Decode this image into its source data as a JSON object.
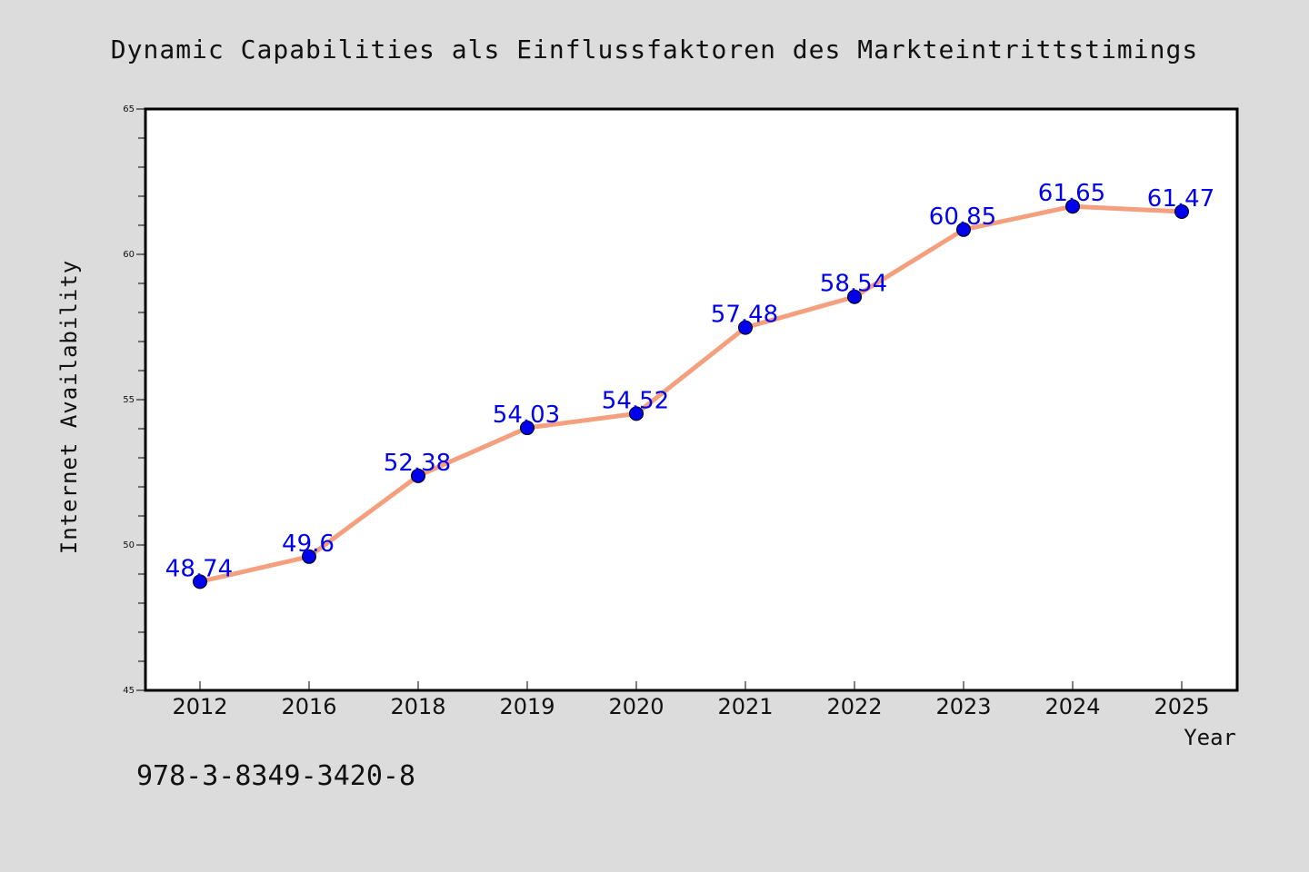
{
  "chart_data": {
    "type": "line",
    "title": "Dynamic Capabilities als Einflussfaktoren des Markteintrittstimings",
    "xlabel": "Year",
    "ylabel": "Internet Availability",
    "categories": [
      "2012",
      "2016",
      "2018",
      "2019",
      "2020",
      "2021",
      "2022",
      "2023",
      "2024",
      "2025"
    ],
    "series": [
      {
        "values": [
          48.74,
          49.6,
          52.38,
          54.03,
          54.52,
          57.48,
          58.54,
          60.85,
          61.65,
          61.47
        ],
        "labels": [
          "48.74",
          "49.6",
          "52.38",
          "54.03",
          "54.52",
          "57.48",
          "58.54",
          "60.85",
          "61.65",
          "61.47"
        ]
      }
    ],
    "ylim": [
      45,
      65
    ],
    "yticks": [
      45,
      50,
      55,
      60,
      65
    ],
    "ytick_labels": [
      "45",
      "50",
      "55",
      "60",
      "65"
    ],
    "grid": false,
    "line_color": "#f4a07e",
    "marker_color": "#0000ee",
    "label_color": "#0000ee"
  },
  "footer": {
    "isbn": "978-3-8349-3420-8"
  },
  "colors": {
    "background": "#dcdcdc",
    "plot_background": "#ffffff"
  }
}
